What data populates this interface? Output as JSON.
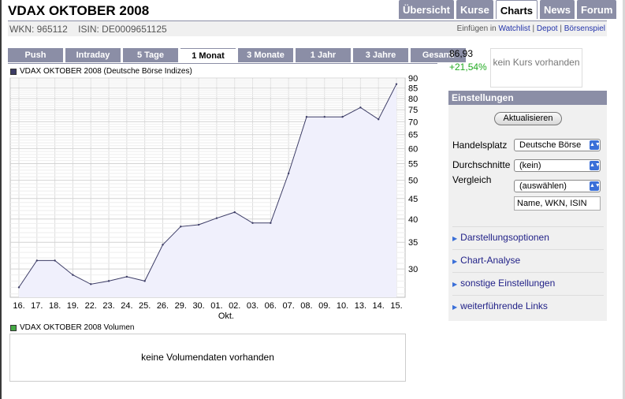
{
  "header": {
    "title": "VDAX OKTOBER 2008",
    "wkn": "WKN: 965112",
    "isin": "ISIN: DE0009651125"
  },
  "nav_tabs": [
    {
      "label": "Übersicht",
      "active": false
    },
    {
      "label": "Kurse",
      "active": false
    },
    {
      "label": "Charts",
      "active": true
    },
    {
      "label": "News",
      "active": false
    },
    {
      "label": "Forum",
      "active": false
    }
  ],
  "actions": {
    "prefix": "Einfügen in",
    "watchlist": "Watchlist",
    "depot": "Depot",
    "boersenspiel": "Börsenspiel",
    "sep": "|"
  },
  "range_tabs": [
    {
      "label": "Push",
      "active": false
    },
    {
      "label": "Intraday",
      "active": false
    },
    {
      "label": "5 Tage",
      "active": false
    },
    {
      "label": "1 Monat",
      "active": true
    },
    {
      "label": "3 Monate",
      "active": false
    },
    {
      "label": "1 Jahr",
      "active": false
    },
    {
      "label": "3 Jahre",
      "active": false
    },
    {
      "label": "Gesamt",
      "active": false
    }
  ],
  "quote": {
    "price": "86,93",
    "change": "+21,54%",
    "no_price": "kein Kurs vorhanden"
  },
  "settings": {
    "title": "Einstellungen",
    "refresh_button": "Aktualisieren",
    "handelsplatz_label": "Handelsplatz",
    "handelsplatz_value": "Deutsche Börse",
    "durchschnitte_label": "Durchschnitte",
    "durchschnitte_value": "(kein)",
    "vergleich_label": "Vergleich",
    "vergleich_value": "(auswählen)",
    "search_value": "Name, WKN, ISIN",
    "links": [
      "Darstellungsoptionen",
      "Chart-Analyse",
      "sonstige Einstellungen",
      "weiterführende Links"
    ]
  },
  "volume": {
    "legend": "VDAX OKTOBER 2008 Volumen",
    "message": "keine Volumendaten vorhanden"
  },
  "colors": {
    "line": "#3d3d66",
    "fill": "#f0f0fc",
    "grid": "#dddddd",
    "accent": "#8b8ea6",
    "up": "#22aa22"
  },
  "chart_data": {
    "type": "area",
    "legend": "VDAX OKTOBER 2008 (Deutsche Börse Indizes)",
    "categories": [
      "16.",
      "17.",
      "18.",
      "19.",
      "22.",
      "23.",
      "24.",
      "25.",
      "26.",
      "29.",
      "30.",
      "01.",
      "02.",
      "03.",
      "06.",
      "07.",
      "08.",
      "09.",
      "10.",
      "13.",
      "14.",
      "15."
    ],
    "xlabel_sub": "Okt.",
    "values": [
      27.0,
      31.5,
      31.5,
      29.0,
      27.5,
      28.0,
      28.7,
      28.0,
      34.5,
      38.3,
      38.7,
      40.2,
      41.6,
      39.1,
      39.1,
      52.0,
      72.0,
      72.0,
      72.0,
      76.0,
      71.0,
      86.93
    ],
    "y_axis_ticks": [
      30,
      35,
      40,
      45,
      50,
      55,
      60,
      65,
      70,
      75,
      80,
      85,
      90
    ],
    "yscale": "log",
    "ylim": [
      25.5,
      90
    ],
    "grid": true
  }
}
